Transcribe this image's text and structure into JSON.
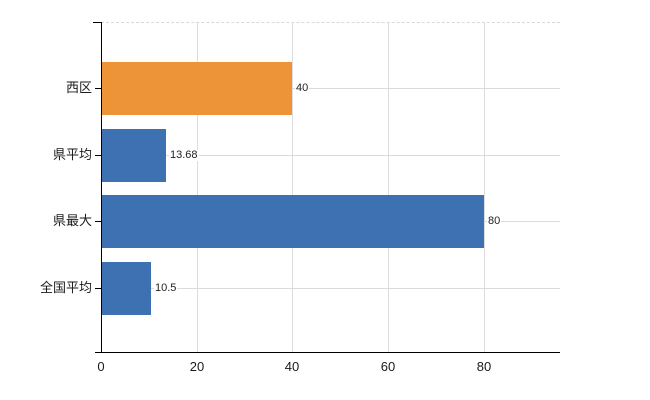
{
  "chart_data": {
    "type": "bar",
    "orientation": "horizontal",
    "title": "",
    "xlabel": "",
    "ylabel": "",
    "categories": [
      "西区",
      "県平均",
      "県最大",
      "全国平均"
    ],
    "values": [
      40,
      13.68,
      80,
      10.5
    ],
    "value_labels": [
      "40",
      "13.68",
      "80",
      "10.5"
    ],
    "bar_colors": [
      "#ED9438",
      "#3E71B2",
      "#3E71B2",
      "#3E71B2"
    ],
    "x_ticks": [
      0,
      20,
      40,
      60,
      80
    ],
    "x_tick_labels": [
      "0",
      "20",
      "40",
      "60",
      "80"
    ],
    "xlim": [
      0,
      96
    ],
    "grid": true,
    "legend_position": "none",
    "colors": {
      "highlight_bar": "#ED9438",
      "default_bar": "#3E71B2",
      "gridline": "#DCDCDC",
      "axis": "#000000",
      "text": "#1A1A1A",
      "background": "#FFFFFF"
    }
  }
}
